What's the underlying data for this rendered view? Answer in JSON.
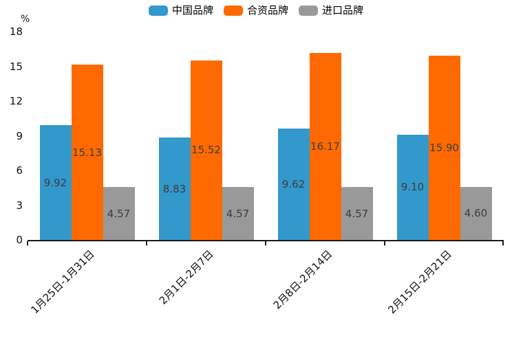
{
  "chart_data": {
    "type": "bar",
    "title": "",
    "xlabel": "",
    "ylabel": "%",
    "ylim": [
      0,
      18
    ],
    "yticks": [
      0,
      3,
      6,
      9,
      12,
      15,
      18
    ],
    "grid": false,
    "legend_position": "top-center",
    "value_label_decimals": 2,
    "categories": [
      "1月25日-1月31日",
      "2月1日-2月7日",
      "2月8日-2月14日",
      "2月15日-2月21日"
    ],
    "series": [
      {
        "id": "china-brand",
        "name": "中国品牌",
        "color": "#3398CB",
        "values": [
          9.92,
          8.83,
          9.62,
          9.1
        ]
      },
      {
        "id": "joint-venture-brand",
        "name": "合资品牌",
        "color": "#FF6A00",
        "values": [
          15.13,
          15.52,
          16.17,
          15.9
        ]
      },
      {
        "id": "import-brand",
        "name": "进口品牌",
        "color": "#999999",
        "values": [
          4.57,
          4.57,
          4.57,
          4.6
        ]
      }
    ]
  }
}
